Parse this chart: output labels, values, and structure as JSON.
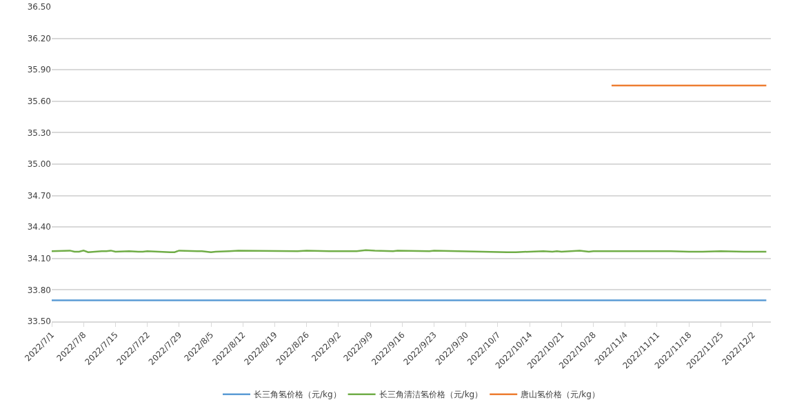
{
  "chart_data": {
    "type": "line",
    "ylim": [
      33.5,
      36.5
    ],
    "yticks": [
      {
        "value": 33.5,
        "label": "33.50"
      },
      {
        "value": 33.8,
        "label": "33.80"
      },
      {
        "value": 34.1,
        "label": "34.10"
      },
      {
        "value": 34.4,
        "label": "34.40"
      },
      {
        "value": 34.7,
        "label": "34.70"
      },
      {
        "value": 35.0,
        "label": "35.00"
      },
      {
        "value": 35.3,
        "label": "35.30"
      },
      {
        "value": 35.6,
        "label": "35.60"
      },
      {
        "value": 35.9,
        "label": "35.90"
      },
      {
        "value": 36.2,
        "label": "36.20"
      },
      {
        "value": 36.5,
        "label": "36.50"
      }
    ],
    "xlim": [
      "2022-07-01",
      "2022-12-06"
    ],
    "xticks": [
      {
        "value": "2022-07-01",
        "label": "2022/7/1"
      },
      {
        "value": "2022-07-08",
        "label": "2022/7/8"
      },
      {
        "value": "2022-07-15",
        "label": "2022/7/15"
      },
      {
        "value": "2022-07-22",
        "label": "2022/7/22"
      },
      {
        "value": "2022-07-29",
        "label": "2022/7/29"
      },
      {
        "value": "2022-08-05",
        "label": "2022/8/5"
      },
      {
        "value": "2022-08-12",
        "label": "2022/8/12"
      },
      {
        "value": "2022-08-19",
        "label": "2022/8/19"
      },
      {
        "value": "2022-08-26",
        "label": "2022/8/26"
      },
      {
        "value": "2022-09-02",
        "label": "2022/9/2"
      },
      {
        "value": "2022-09-09",
        "label": "2022/9/9"
      },
      {
        "value": "2022-09-16",
        "label": "2022/9/16"
      },
      {
        "value": "2022-09-23",
        "label": "2022/9/23"
      },
      {
        "value": "2022-09-30",
        "label": "2022/9/30"
      },
      {
        "value": "2022-10-07",
        "label": "2022/10/7"
      },
      {
        "value": "2022-10-14",
        "label": "2022/10/14"
      },
      {
        "value": "2022-10-21",
        "label": "2022/10/21"
      },
      {
        "value": "2022-10-28",
        "label": "2022/10/28"
      },
      {
        "value": "2022-11-04",
        "label": "2022/11/4"
      },
      {
        "value": "2022-11-11",
        "label": "2022/11/11"
      },
      {
        "value": "2022-11-18",
        "label": "2022/11/18"
      },
      {
        "value": "2022-11-25",
        "label": "2022/11/25"
      },
      {
        "value": "2022-12-02",
        "label": "2022/12/2"
      }
    ],
    "grid": "y",
    "legend": "bottom",
    "marker": "none",
    "line_style": "solid",
    "series": [
      {
        "name": "长三角氢价格（元/kg）",
        "color": "#5b9bd5",
        "x": [
          "2022-07-01",
          "2022-12-05"
        ],
        "values": [
          33.7,
          33.7
        ]
      },
      {
        "name": "长三角清洁氢价格（元/kg）",
        "color": "#70ad47",
        "x": [
          "2022-07-01",
          "2022-07-05",
          "2022-07-06",
          "2022-07-07",
          "2022-07-08",
          "2022-07-09",
          "2022-07-12",
          "2022-07-13",
          "2022-07-14",
          "2022-07-15",
          "2022-07-18",
          "2022-07-20",
          "2022-07-21",
          "2022-07-22",
          "2022-07-27",
          "2022-07-28",
          "2022-07-29",
          "2022-08-02",
          "2022-08-03",
          "2022-08-05",
          "2022-08-06",
          "2022-08-09",
          "2022-08-11",
          "2022-08-24",
          "2022-08-26",
          "2022-08-31",
          "2022-09-06",
          "2022-09-08",
          "2022-09-10",
          "2022-09-14",
          "2022-09-15",
          "2022-09-22",
          "2022-09-23",
          "2022-10-09",
          "2022-10-11",
          "2022-10-17",
          "2022-10-19",
          "2022-10-20",
          "2022-10-21",
          "2022-10-25",
          "2022-10-27",
          "2022-10-28",
          "2022-11-10",
          "2022-11-14",
          "2022-11-18",
          "2022-11-21",
          "2022-11-25",
          "2022-11-30",
          "2022-12-05"
        ],
        "values": [
          34.17,
          34.175,
          34.165,
          34.165,
          34.175,
          34.16,
          34.17,
          34.17,
          34.175,
          34.165,
          34.17,
          34.165,
          34.165,
          34.17,
          34.16,
          34.16,
          34.175,
          34.17,
          34.17,
          34.16,
          34.165,
          34.17,
          34.175,
          34.17,
          34.175,
          34.17,
          34.17,
          34.18,
          34.175,
          34.17,
          34.175,
          34.17,
          34.175,
          34.16,
          34.16,
          34.17,
          34.165,
          34.17,
          34.165,
          34.175,
          34.165,
          34.17,
          34.17,
          34.17,
          34.165,
          34.165,
          34.17,
          34.165,
          34.165
        ]
      },
      {
        "name": "唐山氢价格（元/kg）",
        "color": "#ed7d31",
        "x": [
          "2022-11-01",
          "2022-12-05"
        ],
        "values": [
          35.75,
          35.75
        ]
      }
    ]
  }
}
